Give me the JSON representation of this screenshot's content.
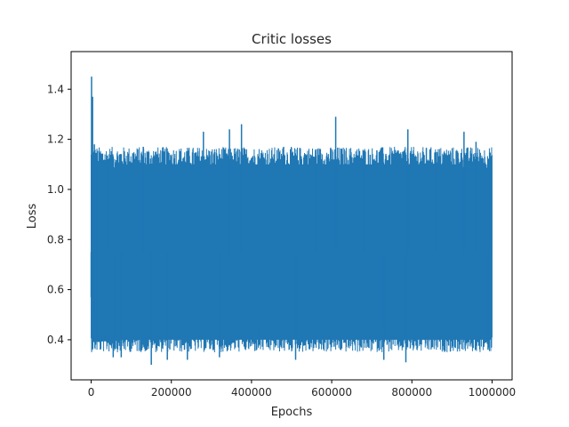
{
  "chart_data": {
    "type": "line",
    "title": "Critic losses",
    "xlabel": "Epochs",
    "ylabel": "Loss",
    "xlim": [
      -50000,
      1050000
    ],
    "ylim": [
      0.24,
      1.55
    ],
    "xticks": [
      0,
      200000,
      400000,
      600000,
      800000,
      1000000
    ],
    "yticks": [
      0.4,
      0.6,
      0.8,
      1.0,
      1.2,
      1.4
    ],
    "xtick_labels": [
      "0",
      "200000",
      "400000",
      "600000",
      "800000",
      "1000000"
    ],
    "ytick_labels": [
      "0.4",
      "0.6",
      "0.8",
      "1.0",
      "1.2",
      "1.4"
    ],
    "grid": false,
    "series": [
      {
        "color": "#1f77b4",
        "band_x": [
          0,
          1000000
        ],
        "band_low": [
          0.39,
          0.4,
          0.4,
          0.4,
          0.4,
          0.4,
          0.4,
          0.4,
          0.4,
          0.4,
          0.4,
          0.4
        ],
        "band_high": [
          1.05,
          1.1,
          1.1,
          1.1,
          1.1,
          1.1,
          1.1,
          1.1,
          1.1,
          1.1,
          1.1,
          1.05
        ],
        "points": [
          {
            "x": 0,
            "y": 0.57
          },
          {
            "x": 1000,
            "y": 1.45
          },
          {
            "x": 2000,
            "y": 0.62
          },
          {
            "x": 3500,
            "y": 1.37
          },
          {
            "x": 5000,
            "y": 0.5
          },
          {
            "x": 8000,
            "y": 1.18
          },
          {
            "x": 11000,
            "y": 0.38
          },
          {
            "x": 15000,
            "y": 1.12
          },
          {
            "x": 40000,
            "y": 1.12
          },
          {
            "x": 55000,
            "y": 0.33
          },
          {
            "x": 75000,
            "y": 0.33
          },
          {
            "x": 130000,
            "y": 1.17
          },
          {
            "x": 150000,
            "y": 0.3
          },
          {
            "x": 190000,
            "y": 0.32
          },
          {
            "x": 240000,
            "y": 0.32
          },
          {
            "x": 280000,
            "y": 1.23
          },
          {
            "x": 320000,
            "y": 0.33
          },
          {
            "x": 345000,
            "y": 1.24
          },
          {
            "x": 375000,
            "y": 1.26
          },
          {
            "x": 420000,
            "y": 0.38
          },
          {
            "x": 480000,
            "y": 1.17
          },
          {
            "x": 510000,
            "y": 0.32
          },
          {
            "x": 560000,
            "y": 1.16
          },
          {
            "x": 610000,
            "y": 1.29
          },
          {
            "x": 680000,
            "y": 1.15
          },
          {
            "x": 730000,
            "y": 0.32
          },
          {
            "x": 785000,
            "y": 0.31
          },
          {
            "x": 790000,
            "y": 1.24
          },
          {
            "x": 860000,
            "y": 1.15
          },
          {
            "x": 930000,
            "y": 1.23
          },
          {
            "x": 960000,
            "y": 1.19
          },
          {
            "x": 990000,
            "y": 0.36
          }
        ]
      }
    ]
  }
}
